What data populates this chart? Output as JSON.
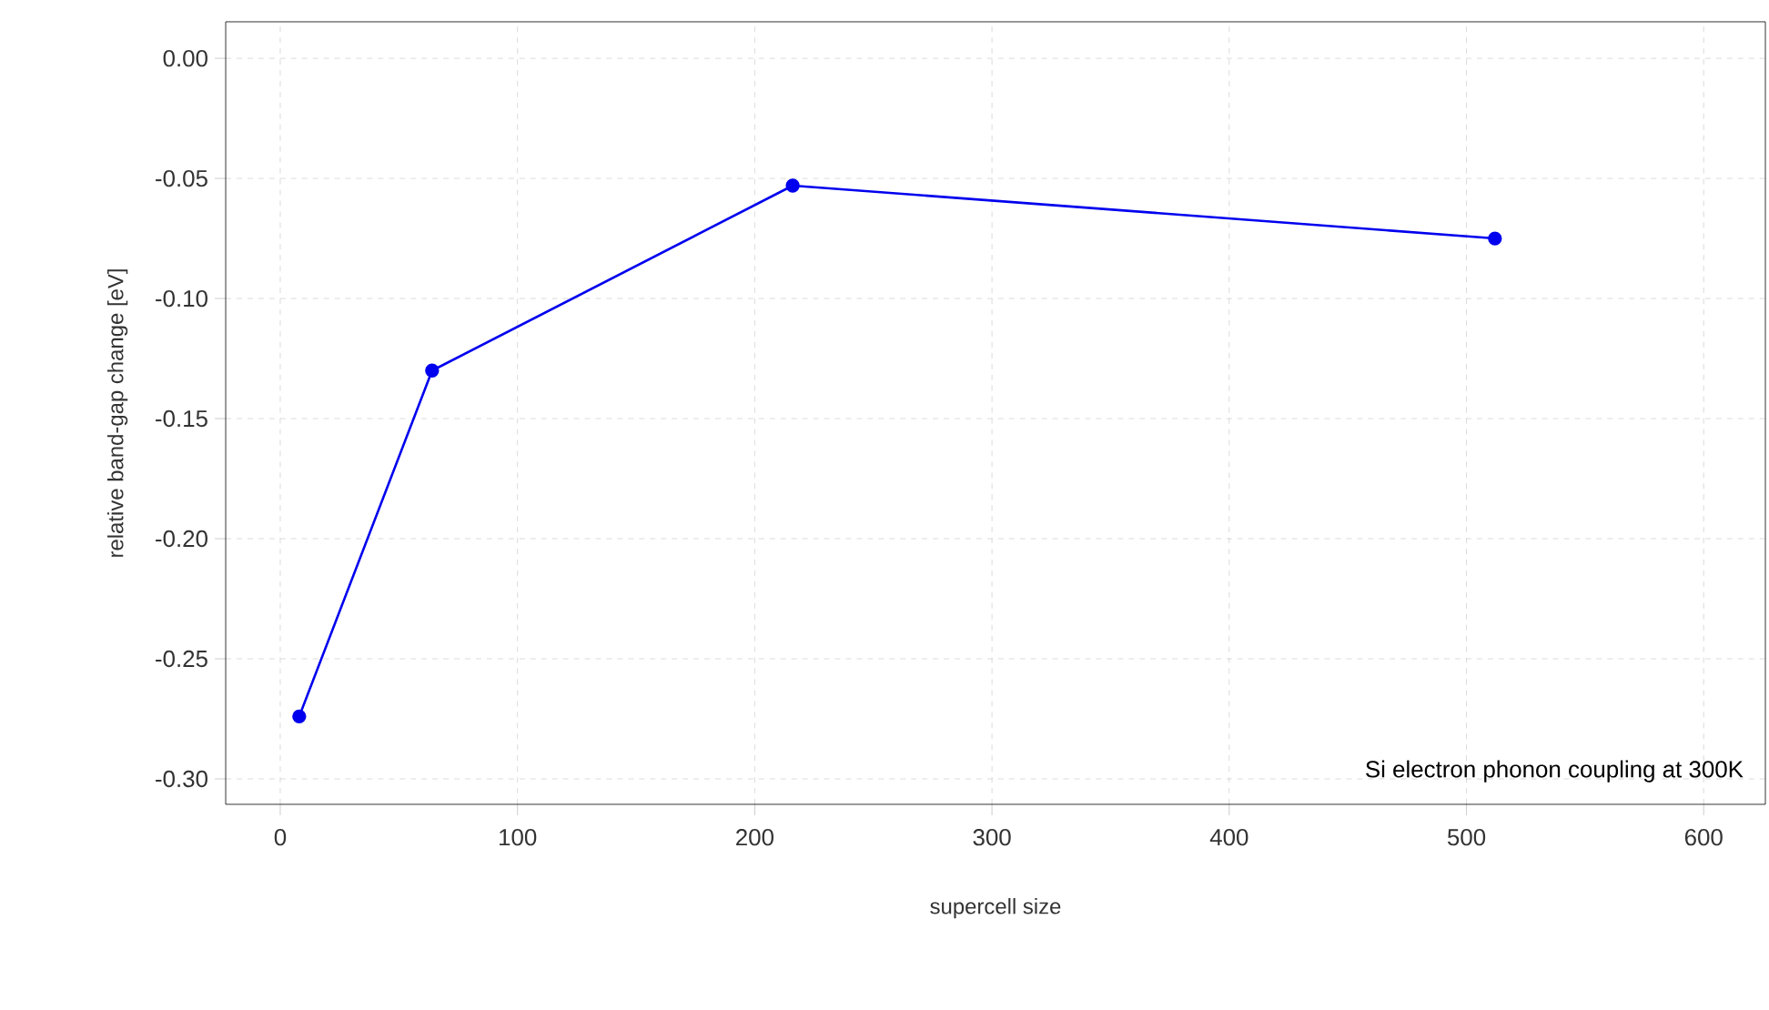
{
  "chart_data": {
    "type": "line",
    "xlabel": "supercell size",
    "ylabel": "relative band-gap change [eV]",
    "x": [
      8,
      64,
      216,
      512
    ],
    "series": [
      {
        "color": "#0000ee",
        "values": [
          -0.274,
          -0.13,
          -0.053,
          -0.075
        ]
      }
    ],
    "xlim": [
      -23,
      626
    ],
    "ylim": [
      -0.3106,
      0.0152
    ],
    "xticks": [
      0,
      100,
      200,
      300,
      400,
      500,
      600
    ],
    "yticks": [
      {
        "value": 0,
        "label": "0.00"
      },
      {
        "value": -0.05,
        "label": "-0.05"
      },
      {
        "value": -0.1,
        "label": "-0.10"
      },
      {
        "value": -0.15,
        "label": "-0.15"
      },
      {
        "value": -0.2,
        "label": "-0.20"
      },
      {
        "value": -0.25,
        "label": "-0.25"
      },
      {
        "value": -0.3,
        "label": "-0.30"
      }
    ],
    "grid": true,
    "marker": "circle",
    "line_style": "solid",
    "annotations": [
      "Si electron phonon coupling at 300K"
    ]
  }
}
